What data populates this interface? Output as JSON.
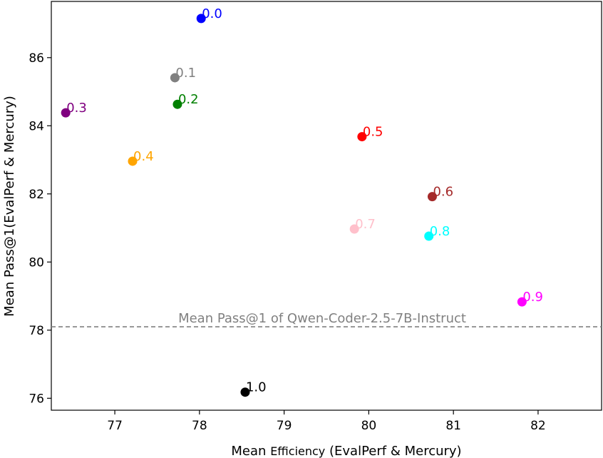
{
  "chart_data": {
    "type": "scatter",
    "title": "",
    "xlabel_parts": [
      "Mean",
      "Efficiency",
      "(EvalPerf & Mercury)"
    ],
    "ylabel": "Mean Pass@1(EvalPerf & Mercury)",
    "xlim": [
      76.25,
      82.75
    ],
    "ylim": [
      75.65,
      87.65
    ],
    "xticks": [
      77,
      78,
      79,
      80,
      81,
      82
    ],
    "yticks": [
      76,
      78,
      80,
      82,
      84,
      86
    ],
    "grid": false,
    "points": [
      {
        "label": "0.0",
        "x": 78.02,
        "y": 87.15,
        "color": "#0000ff"
      },
      {
        "label": "0.1",
        "x": 77.71,
        "y": 85.41,
        "color": "#808080"
      },
      {
        "label": "0.2",
        "x": 77.74,
        "y": 84.63,
        "color": "#008000"
      },
      {
        "label": "0.3",
        "x": 76.42,
        "y": 84.38,
        "color": "#800080"
      },
      {
        "label": "0.4",
        "x": 77.21,
        "y": 82.96,
        "color": "#ffa500"
      },
      {
        "label": "0.5",
        "x": 79.92,
        "y": 83.68,
        "color": "#ff0000"
      },
      {
        "label": "0.6",
        "x": 80.75,
        "y": 81.92,
        "color": "#a52a2a"
      },
      {
        "label": "0.7",
        "x": 79.83,
        "y": 80.97,
        "color": "#ffc0cb"
      },
      {
        "label": "0.8",
        "x": 80.71,
        "y": 80.76,
        "color": "#00ffff"
      },
      {
        "label": "0.9",
        "x": 81.81,
        "y": 78.83,
        "color": "#ff00ff"
      },
      {
        "label": "1.0",
        "x": 78.54,
        "y": 76.18,
        "color": "#000000"
      }
    ],
    "reference_line": {
      "y": 78.1,
      "label": "Mean Pass@1 of Qwen-Coder-2.5-7B-Instruct",
      "color": "#808080",
      "style": "dashed"
    }
  }
}
